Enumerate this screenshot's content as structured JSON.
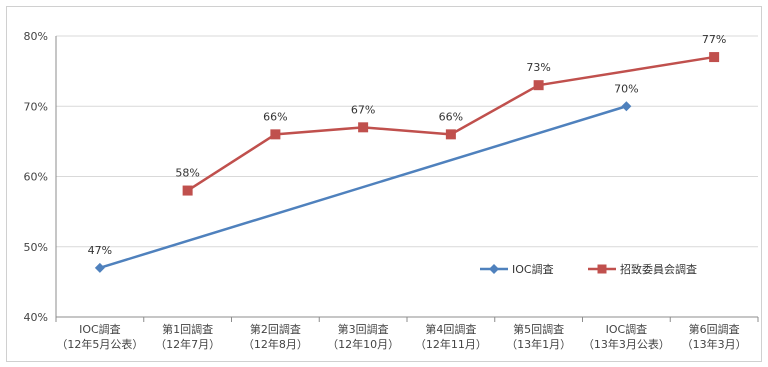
{
  "chart_data": {
    "type": "line",
    "categories": [
      [
        "IOC調査",
        "（12年5月公表）"
      ],
      [
        "第1回調査",
        "（12年7月）"
      ],
      [
        "第2回調査",
        "（12年8月）"
      ],
      [
        "第3回調査",
        "（12年10月）"
      ],
      [
        "第4回調査",
        "（12年11月）"
      ],
      [
        "第5回調査",
        "（13年1月）"
      ],
      [
        "IOC調査",
        "（13年3月公表）"
      ],
      [
        "第6回調査",
        "（13年3月）"
      ]
    ],
    "ylim": [
      40,
      80
    ],
    "yticks": [
      40,
      50,
      60,
      70,
      80
    ],
    "ytick_labels": [
      "40%",
      "50%",
      "60%",
      "70%",
      "80%"
    ],
    "grid": true,
    "legend_position": "lower-right",
    "series": [
      {
        "name": "IOC調査",
        "color": "#4f81bd",
        "marker": "diamond",
        "points": [
          {
            "index": 0,
            "value": 47,
            "label": "47%"
          },
          {
            "index": 6,
            "value": 70,
            "label": "70%"
          }
        ]
      },
      {
        "name": "招致委員会調査",
        "color": "#c0504d",
        "marker": "square",
        "points": [
          {
            "index": 1,
            "value": 58,
            "label": "58%"
          },
          {
            "index": 2,
            "value": 66,
            "label": "66%"
          },
          {
            "index": 3,
            "value": 67,
            "label": "67%"
          },
          {
            "index": 4,
            "value": 66,
            "label": "66%"
          },
          {
            "index": 5,
            "value": 73,
            "label": "73%"
          },
          {
            "index": 7,
            "value": 77,
            "label": "77%"
          }
        ]
      }
    ]
  }
}
